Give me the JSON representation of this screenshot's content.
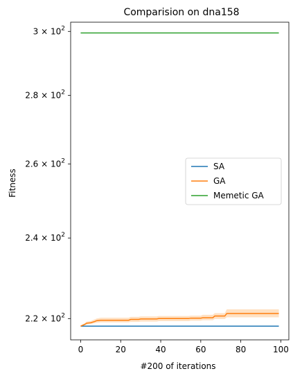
{
  "chart_data": {
    "type": "line",
    "title": "Comparision on dna158",
    "xlabel": "#200 of iterations",
    "ylabel": "Fitness",
    "xlim": [
      -5,
      104
    ],
    "ylim": [
      215,
      303
    ],
    "yscale": "log",
    "grid": false,
    "legend_position": "center-right",
    "x_ticks": [
      0,
      20,
      40,
      60,
      80,
      100
    ],
    "y_ticks": [
      {
        "value": 220,
        "label_base": "2.2 × 10",
        "label_exp": "2"
      },
      {
        "value": 240,
        "label_base": "2.4 × 10",
        "label_exp": "2"
      },
      {
        "value": 260,
        "label_base": "2.6 × 10",
        "label_exp": "2"
      },
      {
        "value": 280,
        "label_base": "2.8 × 10",
        "label_exp": "2"
      },
      {
        "value": 300,
        "label_base": "3 × 10",
        "label_exp": "2"
      }
    ],
    "series": [
      {
        "name": "SA",
        "color": "#1f77b4",
        "x": [
          0,
          99
        ],
        "y": [
          218.2,
          218.2
        ]
      },
      {
        "name": "GA",
        "color": "#ff7f0e",
        "band_color": "#ffdcb8",
        "x": [
          0,
          2,
          3,
          5,
          7,
          8,
          10,
          24,
          25,
          29,
          30,
          38,
          39,
          54,
          55,
          60,
          61,
          66,
          67,
          72,
          73,
          99
        ],
        "y": [
          218.2,
          218.6,
          218.9,
          219.0,
          219.3,
          219.5,
          219.6,
          219.6,
          219.8,
          219.8,
          219.9,
          219.9,
          220.0,
          220.0,
          220.1,
          220.1,
          220.2,
          220.2,
          220.6,
          220.6,
          221.2,
          221.2
        ],
        "band_lower": [
          218.2,
          218.4,
          218.6,
          218.7,
          218.9,
          219.0,
          219.1,
          219.1,
          219.2,
          219.2,
          219.3,
          219.3,
          219.4,
          219.4,
          219.5,
          219.5,
          219.6,
          219.6,
          219.9,
          219.9,
          220.3,
          220.3
        ],
        "band_upper": [
          218.4,
          218.9,
          219.3,
          219.4,
          219.8,
          220.0,
          220.2,
          220.2,
          220.4,
          220.4,
          220.5,
          220.5,
          220.6,
          220.6,
          220.7,
          220.7,
          220.9,
          220.9,
          221.3,
          221.3,
          222.2,
          222.2
        ]
      },
      {
        "name": "Memetic GA",
        "color": "#2ca02c",
        "x": [
          0,
          99
        ],
        "y": [
          299.5,
          299.5
        ]
      }
    ]
  }
}
